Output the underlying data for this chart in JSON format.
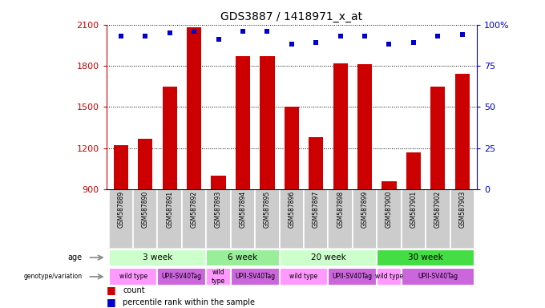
{
  "title": "GDS3887 / 1418971_x_at",
  "samples": [
    "GSM587889",
    "GSM587890",
    "GSM587891",
    "GSM587892",
    "GSM587893",
    "GSM587894",
    "GSM587895",
    "GSM587896",
    "GSM587897",
    "GSM587898",
    "GSM587899",
    "GSM587900",
    "GSM587901",
    "GSM587902",
    "GSM587903"
  ],
  "counts": [
    1220,
    1270,
    1650,
    2080,
    1000,
    1870,
    1870,
    1500,
    1280,
    1820,
    1810,
    960,
    1170,
    1650,
    1740
  ],
  "percentiles": [
    93,
    93,
    95,
    96,
    91,
    96,
    96,
    88,
    89,
    93,
    93,
    88,
    89,
    93,
    94
  ],
  "ymin": 900,
  "ymax": 2100,
  "yticks": [
    900,
    1200,
    1500,
    1800,
    2100
  ],
  "right_yticks": [
    0,
    25,
    50,
    75,
    100
  ],
  "bar_color": "#cc0000",
  "dot_color": "#0000cc",
  "tick_bg_color": "#cccccc",
  "age_groups": [
    {
      "label": "3 week",
      "start": 0,
      "end": 4,
      "color": "#ccffcc"
    },
    {
      "label": "6 week",
      "start": 4,
      "end": 7,
      "color": "#99ee99"
    },
    {
      "label": "20 week",
      "start": 7,
      "end": 11,
      "color": "#ccffcc"
    },
    {
      "label": "30 week",
      "start": 11,
      "end": 15,
      "color": "#44dd44"
    }
  ],
  "genotype_groups": [
    {
      "label": "wild type",
      "start": 0,
      "end": 2,
      "color": "#ff99ff"
    },
    {
      "label": "UPII-SV40Tag",
      "start": 2,
      "end": 4,
      "color": "#cc66dd"
    },
    {
      "label": "wild\ntype",
      "start": 4,
      "end": 5,
      "color": "#ff99ff"
    },
    {
      "label": "UPII-SV40Tag",
      "start": 5,
      "end": 7,
      "color": "#cc66dd"
    },
    {
      "label": "wild type",
      "start": 7,
      "end": 9,
      "color": "#ff99ff"
    },
    {
      "label": "UPII-SV40Tag",
      "start": 9,
      "end": 11,
      "color": "#cc66dd"
    },
    {
      "label": "wild type",
      "start": 11,
      "end": 12,
      "color": "#ff99ff"
    },
    {
      "label": "UPII-SV40Tag",
      "start": 12,
      "end": 15,
      "color": "#cc66dd"
    }
  ],
  "legend_count_label": "count",
  "legend_percentile_label": "percentile rank within the sample",
  "left_axis_color": "#cc0000",
  "right_axis_color": "#0000cc"
}
